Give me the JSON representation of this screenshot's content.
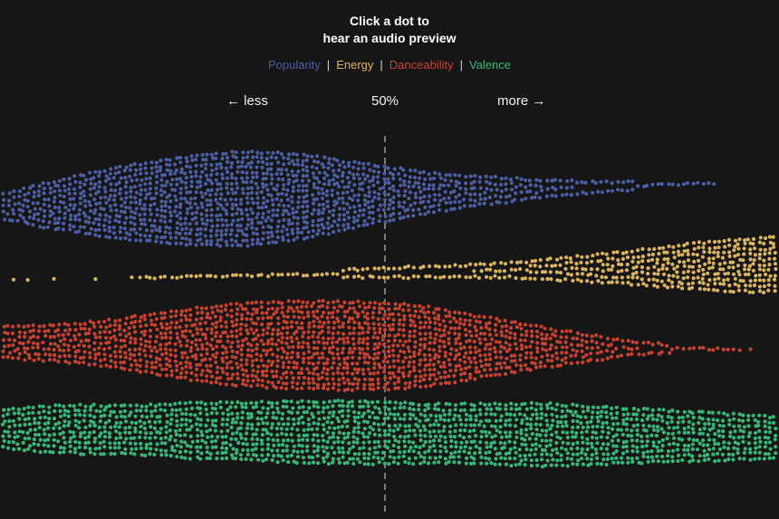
{
  "title": {
    "line1": "Click a dot to",
    "line2": "hear an audio preview"
  },
  "legend": {
    "items": [
      {
        "label": "Popularity",
        "color": "#4a5ea3"
      },
      {
        "label": "Energy",
        "color": "#d9b45a"
      },
      {
        "label": "Danceability",
        "color": "#c8412f"
      },
      {
        "label": "Valence",
        "color": "#33b877"
      }
    ],
    "separator": "|"
  },
  "axis": {
    "less_label": "← less",
    "mid_label": "50%",
    "more_label": "more →"
  },
  "chart_data": {
    "type": "scatter",
    "subtype": "beeswarm",
    "title": "Click a dot to hear an audio preview",
    "x_range": [
      0,
      100
    ],
    "reference_line": 50,
    "reference_label": "50%",
    "series": [
      {
        "name": "Popularity",
        "color": "#4a5ea3",
        "density": [
          [
            0,
            0.25
          ],
          [
            5,
            0.45
          ],
          [
            10,
            0.6
          ],
          [
            15,
            0.75
          ],
          [
            20,
            0.85
          ],
          [
            25,
            0.95
          ],
          [
            30,
            1.0
          ],
          [
            35,
            0.95
          ],
          [
            40,
            0.85
          ],
          [
            45,
            0.7
          ],
          [
            50,
            0.55
          ],
          [
            55,
            0.42
          ],
          [
            60,
            0.32
          ],
          [
            65,
            0.25
          ],
          [
            70,
            0.18
          ],
          [
            75,
            0.12
          ],
          [
            80,
            0.09
          ],
          [
            85,
            0.06
          ],
          [
            90,
            0.05
          ],
          [
            92,
            0.02
          ],
          [
            93,
            0
          ]
        ]
      },
      {
        "name": "Energy",
        "color": "#d9b45a",
        "density": [
          [
            0,
            0.03
          ],
          [
            10,
            0.03
          ],
          [
            20,
            0.05
          ],
          [
            30,
            0.08
          ],
          [
            40,
            0.12
          ],
          [
            50,
            0.16
          ],
          [
            55,
            0.2
          ],
          [
            60,
            0.22
          ],
          [
            65,
            0.25
          ],
          [
            70,
            0.35
          ],
          [
            75,
            0.45
          ],
          [
            80,
            0.55
          ],
          [
            85,
            0.7
          ],
          [
            90,
            0.85
          ],
          [
            95,
            0.95
          ],
          [
            100,
            1.0
          ]
        ]
      },
      {
        "name": "Danceability",
        "color": "#c8412f",
        "density": [
          [
            0,
            0.35
          ],
          [
            5,
            0.4
          ],
          [
            10,
            0.45
          ],
          [
            15,
            0.55
          ],
          [
            20,
            0.7
          ],
          [
            25,
            0.82
          ],
          [
            30,
            0.92
          ],
          [
            35,
            0.98
          ],
          [
            40,
            1.0
          ],
          [
            45,
            1.0
          ],
          [
            50,
            0.98
          ],
          [
            55,
            0.9
          ],
          [
            60,
            0.75
          ],
          [
            65,
            0.6
          ],
          [
            70,
            0.45
          ],
          [
            75,
            0.32
          ],
          [
            80,
            0.18
          ],
          [
            85,
            0.1
          ],
          [
            90,
            0.05
          ],
          [
            95,
            0.03
          ],
          [
            100,
            0
          ]
        ]
      },
      {
        "name": "Valence",
        "color": "#33b877",
        "density": [
          [
            0,
            0.55
          ],
          [
            5,
            0.65
          ],
          [
            10,
            0.7
          ],
          [
            15,
            0.68
          ],
          [
            20,
            0.72
          ],
          [
            25,
            0.8
          ],
          [
            30,
            0.82
          ],
          [
            35,
            0.85
          ],
          [
            40,
            0.88
          ],
          [
            45,
            0.9
          ],
          [
            50,
            0.88
          ],
          [
            55,
            0.85
          ],
          [
            60,
            0.85
          ],
          [
            65,
            0.88
          ],
          [
            70,
            0.9
          ],
          [
            75,
            0.85
          ],
          [
            80,
            0.8
          ],
          [
            85,
            0.75
          ],
          [
            90,
            0.7
          ],
          [
            95,
            0.65
          ],
          [
            100,
            0.6
          ]
        ]
      }
    ]
  }
}
